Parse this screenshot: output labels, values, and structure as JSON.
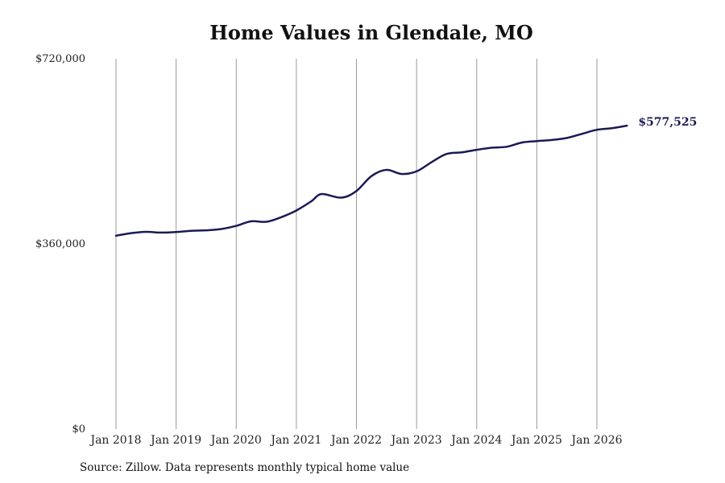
{
  "chart_data": {
    "type": "line",
    "title": "Home Values in Glendale, MO",
    "xlabel": "",
    "ylabel": "",
    "ylim": [
      0,
      720000
    ],
    "y_ticks": [
      {
        "value": 0,
        "label": "$0"
      },
      {
        "value": 360000,
        "label": "$360,000"
      },
      {
        "value": 720000,
        "label": "$720,000"
      }
    ],
    "x_ticks": [
      {
        "value": 2018,
        "label": "Jan 2018"
      },
      {
        "value": 2019,
        "label": "Jan 2019"
      },
      {
        "value": 2020,
        "label": "Jan 2020"
      },
      {
        "value": 2021,
        "label": "Jan 2021"
      },
      {
        "value": 2022,
        "label": "Jan 2022"
      },
      {
        "value": 2023,
        "label": "Jan 2023"
      },
      {
        "value": 2024,
        "label": "Jan 2024"
      },
      {
        "value": 2025,
        "label": "Jan 2025"
      },
      {
        "value": 2026,
        "label": "Jan 2026"
      }
    ],
    "grid": "vertical",
    "line_color": "#1b1a55",
    "end_label": "$577,525",
    "series": [
      {
        "name": "",
        "points": [
          [
            2018.0,
            376000
          ],
          [
            2018.25,
            381000
          ],
          [
            2018.5,
            383500
          ],
          [
            2018.75,
            382000
          ],
          [
            2019.0,
            383000
          ],
          [
            2019.25,
            385500
          ],
          [
            2019.5,
            386500
          ],
          [
            2019.75,
            389000
          ],
          [
            2020.0,
            395000
          ],
          [
            2020.25,
            404000
          ],
          [
            2020.5,
            403000
          ],
          [
            2020.75,
            412000
          ],
          [
            2021.0,
            425000
          ],
          [
            2021.25,
            443000
          ],
          [
            2021.42,
            457000
          ],
          [
            2021.75,
            450000
          ],
          [
            2022.0,
            463000
          ],
          [
            2022.25,
            492000
          ],
          [
            2022.5,
            504000
          ],
          [
            2022.75,
            496000
          ],
          [
            2023.0,
            501000
          ],
          [
            2023.25,
            519000
          ],
          [
            2023.5,
            535000
          ],
          [
            2023.75,
            538000
          ],
          [
            2024.0,
            543000
          ],
          [
            2024.25,
            547000
          ],
          [
            2024.5,
            549000
          ],
          [
            2024.75,
            557000
          ],
          [
            2025.0,
            560000
          ],
          [
            2025.25,
            562000
          ],
          [
            2025.5,
            566000
          ],
          [
            2025.75,
            574000
          ],
          [
            2026.0,
            582000
          ],
          [
            2026.25,
            585000
          ],
          [
            2026.5,
            590000
          ]
        ]
      }
    ],
    "source": "Source: Zillow. Data represents monthly typical home value"
  }
}
